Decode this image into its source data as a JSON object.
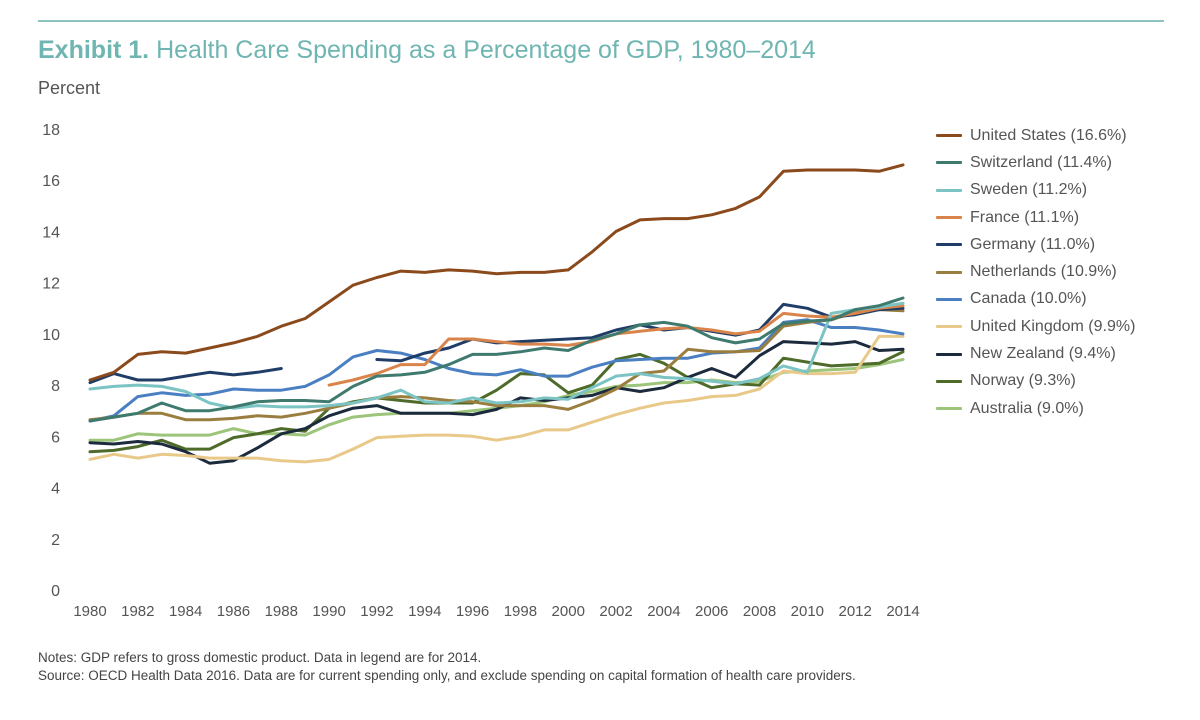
{
  "header": {
    "title_prefix": "Exhibit 1.",
    "title_text": " Health Care Spending as a Percentage of GDP, 1980–2014"
  },
  "notes": {
    "line1": "Notes: GDP refers to gross domestic product. Data in legend are for 2014.",
    "line2": "Source: OECD Health Data 2016. Data are for current spending only, and exclude spending on capital formation of health care providers."
  },
  "chart_data": {
    "type": "line",
    "title": "Health Care Spending as a Percentage of GDP, 1980–2014",
    "ylabel": "Percent",
    "xlabel": "",
    "xlim": [
      1980,
      2014
    ],
    "ylim": [
      0,
      18
    ],
    "x_ticks": [
      1980,
      1982,
      1984,
      1986,
      1988,
      1990,
      1992,
      1994,
      1996,
      1998,
      2000,
      2002,
      2004,
      2006,
      2008,
      2010,
      2012,
      2014
    ],
    "y_ticks": [
      0,
      2,
      4,
      6,
      8,
      10,
      12,
      14,
      16,
      18
    ],
    "grid": false,
    "legend_position": "right",
    "x": [
      1980,
      1981,
      1982,
      1983,
      1984,
      1985,
      1986,
      1987,
      1988,
      1989,
      1990,
      1991,
      1992,
      1993,
      1994,
      1995,
      1996,
      1997,
      1998,
      1999,
      2000,
      2001,
      2002,
      2003,
      2004,
      2005,
      2006,
      2007,
      2008,
      2009,
      2010,
      2011,
      2012,
      2013,
      2014
    ],
    "series": [
      {
        "name": "United States (16.6%)",
        "color": "#8b4a1c",
        "values": [
          8.2,
          8.5,
          9.2,
          9.3,
          9.25,
          9.45,
          9.65,
          9.9,
          10.3,
          10.6,
          11.25,
          11.9,
          12.2,
          12.45,
          12.4,
          12.5,
          12.45,
          12.35,
          12.4,
          12.4,
          12.5,
          13.2,
          14.0,
          14.45,
          14.5,
          14.5,
          14.65,
          14.9,
          15.35,
          16.35,
          16.4,
          16.4,
          16.4,
          16.35,
          16.6
        ]
      },
      {
        "name": "Switzerland (11.4%)",
        "color": "#3f7a6f",
        "values": [
          6.6,
          6.75,
          6.9,
          7.3,
          7.0,
          7.0,
          7.15,
          7.35,
          7.4,
          7.4,
          7.35,
          7.95,
          8.35,
          8.4,
          8.5,
          8.8,
          9.2,
          9.2,
          9.3,
          9.45,
          9.35,
          9.75,
          10.0,
          10.35,
          10.45,
          10.3,
          9.85,
          9.65,
          9.8,
          10.4,
          10.5,
          10.55,
          10.95,
          11.1,
          11.4
        ]
      },
      {
        "name": "Sweden (11.2%)",
        "color": "#7cc4c4",
        "values": [
          7.85,
          7.95,
          8.0,
          7.95,
          7.75,
          7.3,
          7.1,
          7.2,
          7.15,
          7.15,
          7.2,
          7.3,
          7.5,
          7.8,
          7.35,
          7.3,
          7.5,
          7.3,
          7.35,
          7.5,
          7.45,
          7.9,
          8.35,
          8.45,
          8.3,
          8.25,
          8.15,
          8.05,
          8.25,
          8.75,
          8.5,
          10.8,
          10.95,
          11.05,
          11.2
        ]
      },
      {
        "name": "France (11.1%)",
        "color": "#d9844a",
        "values": [
          null,
          null,
          null,
          null,
          null,
          null,
          null,
          null,
          null,
          null,
          8.0,
          8.2,
          8.45,
          8.8,
          8.8,
          9.8,
          9.8,
          9.7,
          9.6,
          9.6,
          9.55,
          9.7,
          10.0,
          10.1,
          10.2,
          10.25,
          10.15,
          10.0,
          10.1,
          10.8,
          10.7,
          10.65,
          10.8,
          11.0,
          11.1
        ]
      },
      {
        "name": "Germany (11.0%)",
        "color": "#1f3d66",
        "values": [
          8.1,
          8.45,
          8.2,
          8.2,
          8.35,
          8.5,
          8.4,
          8.5,
          8.65,
          null,
          null,
          null,
          9.0,
          8.95,
          9.25,
          9.45,
          9.8,
          9.65,
          9.7,
          9.75,
          9.8,
          9.85,
          10.15,
          10.35,
          10.15,
          10.25,
          10.1,
          9.95,
          10.15,
          11.15,
          11.0,
          10.65,
          10.75,
          10.95,
          11.0
        ]
      },
      {
        "name": "Netherlands (10.9%)",
        "color": "#9a7e40",
        "values": [
          6.65,
          6.75,
          6.9,
          6.9,
          6.65,
          6.65,
          6.7,
          6.8,
          6.75,
          6.9,
          7.1,
          7.3,
          7.5,
          7.55,
          7.5,
          7.4,
          7.35,
          7.2,
          7.2,
          7.2,
          7.05,
          7.4,
          7.85,
          8.45,
          8.55,
          9.4,
          9.3,
          9.3,
          9.35,
          10.3,
          10.45,
          10.55,
          10.85,
          10.95,
          10.9
        ]
      },
      {
        "name": "Canada (10.0%)",
        "color": "#4a7fc1",
        "values": [
          6.6,
          6.8,
          7.55,
          7.7,
          7.6,
          7.65,
          7.85,
          7.8,
          7.8,
          7.95,
          8.4,
          9.1,
          9.35,
          9.25,
          9.0,
          8.65,
          8.45,
          8.4,
          8.6,
          8.35,
          8.35,
          8.7,
          8.95,
          9.0,
          9.05,
          9.05,
          9.25,
          9.3,
          9.45,
          10.45,
          10.55,
          10.25,
          10.25,
          10.15,
          10.0
        ]
      },
      {
        "name": "United Kingdom (9.9%)",
        "color": "#e8c98a",
        "values": [
          5.1,
          5.3,
          5.15,
          5.3,
          5.25,
          5.15,
          5.15,
          5.15,
          5.05,
          5.0,
          5.1,
          5.5,
          5.95,
          6.0,
          6.05,
          6.05,
          6.0,
          5.85,
          6.0,
          6.25,
          6.25,
          6.55,
          6.85,
          7.1,
          7.3,
          7.4,
          7.55,
          7.6,
          7.85,
          8.55,
          8.45,
          8.45,
          8.5,
          9.9,
          9.9
        ]
      },
      {
        "name": "New Zealand (9.4%)",
        "color": "#1b2b3d",
        "values": [
          5.75,
          5.7,
          5.8,
          5.7,
          5.4,
          4.95,
          5.05,
          5.55,
          6.1,
          6.3,
          6.8,
          7.1,
          7.2,
          6.9,
          6.9,
          6.9,
          6.85,
          7.05,
          7.5,
          7.4,
          7.5,
          7.6,
          7.9,
          7.75,
          7.9,
          8.3,
          8.65,
          8.3,
          9.15,
          9.7,
          9.65,
          9.6,
          9.7,
          9.35,
          9.4
        ]
      },
      {
        "name": "Norway (9.3%)",
        "color": "#4e6b2a",
        "values": [
          5.4,
          5.45,
          5.6,
          5.85,
          5.5,
          5.5,
          5.95,
          6.1,
          6.3,
          6.2,
          7.1,
          7.35,
          7.5,
          7.4,
          7.3,
          7.3,
          7.3,
          7.8,
          8.45,
          8.4,
          7.7,
          8.0,
          9.0,
          9.2,
          8.85,
          8.3,
          7.9,
          8.05,
          8.0,
          9.05,
          8.9,
          8.75,
          8.8,
          8.85,
          9.3
        ]
      },
      {
        "name": "Australia (9.0%)",
        "color": "#9cc47a",
        "values": [
          5.85,
          5.85,
          6.1,
          6.05,
          6.05,
          6.05,
          6.3,
          6.1,
          6.1,
          6.05,
          6.45,
          6.75,
          6.85,
          6.9,
          6.9,
          6.9,
          7.0,
          7.1,
          7.2,
          7.35,
          7.6,
          7.75,
          7.95,
          8.0,
          8.1,
          8.1,
          8.2,
          8.1,
          8.15,
          8.5,
          8.55,
          8.6,
          8.65,
          8.8,
          9.0
        ]
      }
    ]
  }
}
